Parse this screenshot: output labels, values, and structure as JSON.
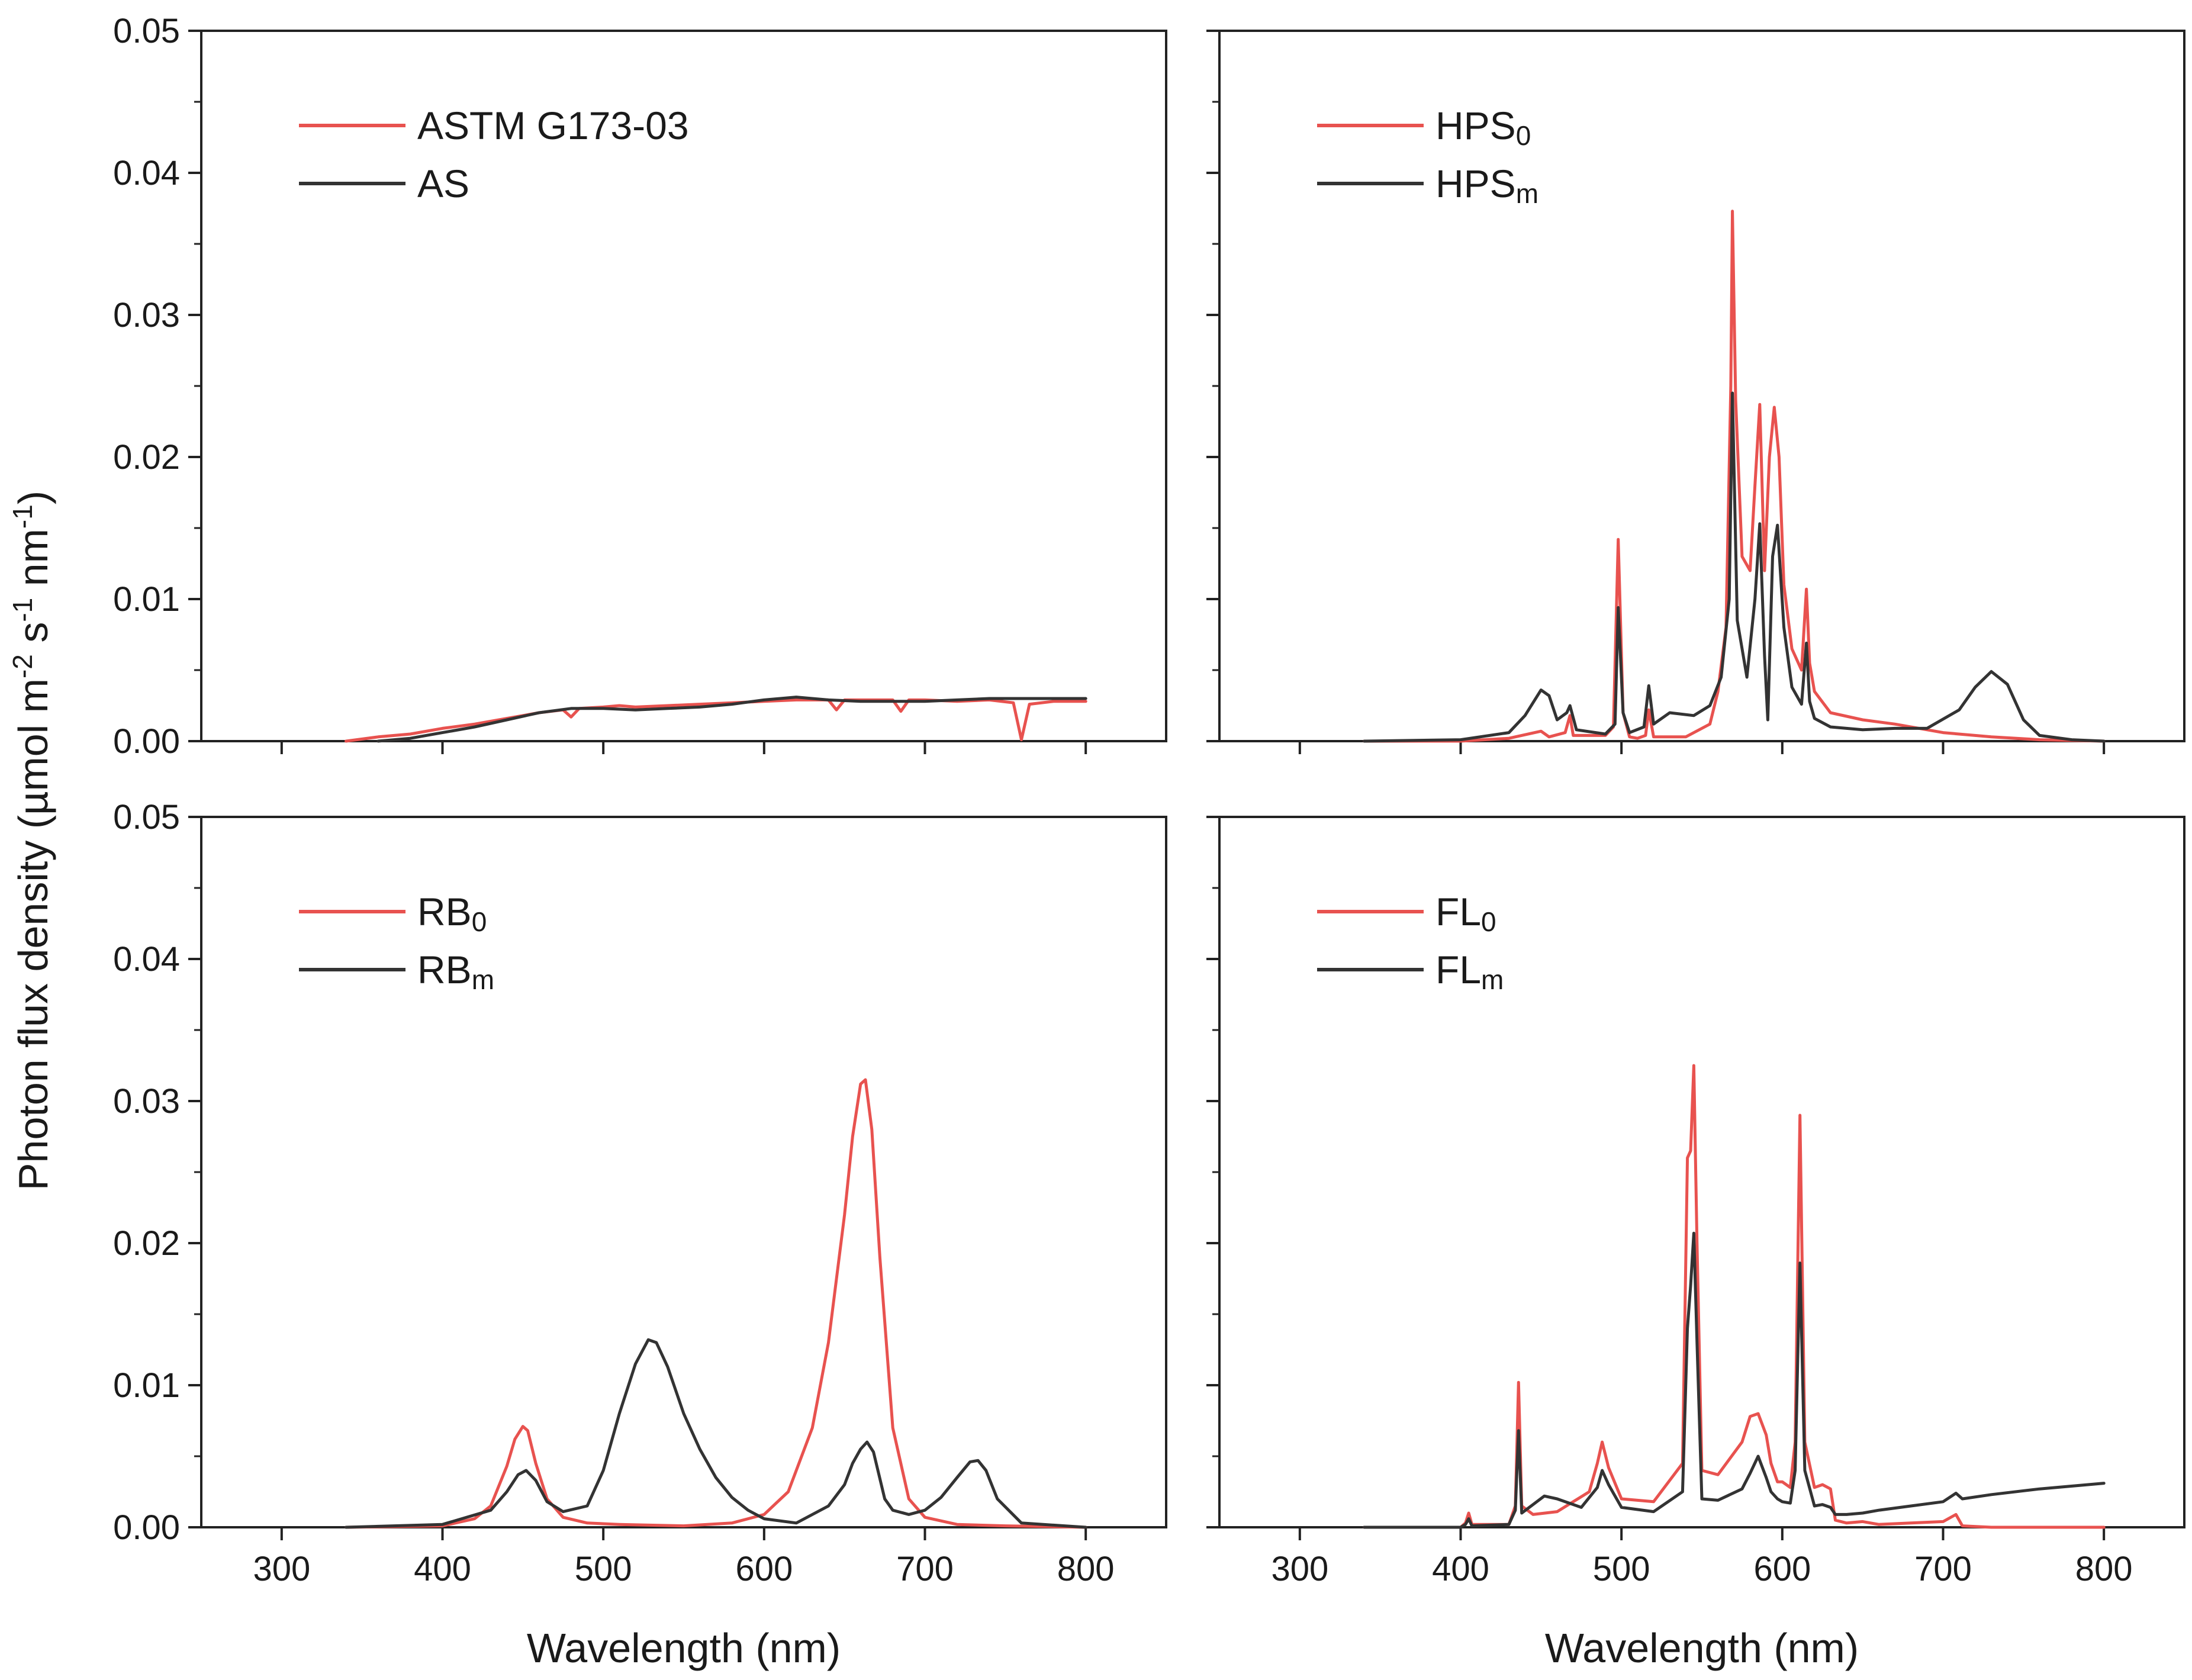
{
  "figure": {
    "ylabel_parts": [
      "Photon flux density (µmol m",
      "-2",
      " s",
      "-1",
      " nm",
      "-1",
      ")"
    ],
    "xlabel": "Wavelength (nm)",
    "colors": {
      "red": "#e8524f",
      "black": "#333333",
      "axis": "#222222"
    }
  },
  "chart_data": [
    {
      "type": "line",
      "panel": "top-left",
      "title": "",
      "xlabel": "",
      "ylabel": "Photon flux density (µmol m-2 s-1 nm-1)",
      "xlim": [
        250,
        850
      ],
      "ylim": [
        0,
        0.05
      ],
      "xticks": [
        300,
        400,
        500,
        600,
        700,
        800
      ],
      "yticks": [
        "0.00",
        "0.01",
        "0.02",
        "0.03",
        "0.04",
        "0.05"
      ],
      "show_x_labels": false,
      "show_y_labels": true,
      "series": [
        {
          "name": "ASTM G173-03",
          "sub": "",
          "color": "#e8524f",
          "x": [
            340,
            360,
            380,
            400,
            420,
            440,
            460,
            475,
            480,
            485,
            500,
            510,
            520,
            540,
            560,
            580,
            600,
            620,
            640,
            645,
            650,
            660,
            680,
            685,
            690,
            700,
            720,
            740,
            755,
            760,
            765,
            780,
            800
          ],
          "y": [
            0.0,
            0.0003,
            0.0005,
            0.0009,
            0.0012,
            0.0016,
            0.002,
            0.0022,
            0.0017,
            0.0023,
            0.0024,
            0.0025,
            0.0024,
            0.0025,
            0.0026,
            0.0027,
            0.0028,
            0.0029,
            0.0029,
            0.0022,
            0.0029,
            0.0029,
            0.0029,
            0.0021,
            0.0029,
            0.0029,
            0.0028,
            0.0029,
            0.0027,
            0.0001,
            0.0026,
            0.0028,
            0.0028
          ]
        },
        {
          "name": "AS",
          "sub": "",
          "color": "#333333",
          "x": [
            360,
            380,
            400,
            420,
            440,
            460,
            480,
            500,
            520,
            540,
            560,
            580,
            600,
            620,
            640,
            660,
            680,
            700,
            720,
            740,
            760,
            780,
            800
          ],
          "y": [
            0.0,
            0.0002,
            0.0006,
            0.001,
            0.0015,
            0.002,
            0.0023,
            0.0023,
            0.0022,
            0.0023,
            0.0024,
            0.0026,
            0.0029,
            0.0031,
            0.0029,
            0.0028,
            0.0028,
            0.0028,
            0.0029,
            0.003,
            0.003,
            0.003,
            0.003
          ]
        }
      ]
    },
    {
      "type": "line",
      "panel": "top-right",
      "title": "",
      "xlabel": "",
      "ylabel": "",
      "xlim": [
        250,
        850
      ],
      "ylim": [
        0,
        0.05
      ],
      "xticks": [
        300,
        400,
        500,
        600,
        700,
        800
      ],
      "yticks": [
        "0.00",
        "0.01",
        "0.02",
        "0.03",
        "0.04",
        "0.05"
      ],
      "show_x_labels": false,
      "show_y_labels": false,
      "series": [
        {
          "name": "HPS",
          "sub": "0",
          "color": "#e8524f",
          "x": [
            340,
            400,
            430,
            450,
            455,
            465,
            468,
            470,
            490,
            495,
            498,
            501,
            505,
            510,
            515,
            517,
            520,
            540,
            555,
            560,
            565,
            568,
            569,
            571,
            575,
            580,
            583,
            586,
            589,
            592,
            595,
            598,
            601,
            606,
            612,
            615,
            617,
            620,
            630,
            650,
            670,
            700,
            730,
            760,
            800
          ],
          "y": [
            0.0,
            0.0,
            0.0002,
            0.0007,
            0.0003,
            0.0006,
            0.0018,
            0.0004,
            0.0004,
            0.001,
            0.0142,
            0.002,
            0.0003,
            0.0002,
            0.0004,
            0.0022,
            0.0003,
            0.0003,
            0.0012,
            0.0035,
            0.008,
            0.025,
            0.0373,
            0.024,
            0.013,
            0.012,
            0.018,
            0.0237,
            0.012,
            0.02,
            0.0235,
            0.02,
            0.011,
            0.0065,
            0.005,
            0.0107,
            0.0055,
            0.0035,
            0.002,
            0.0015,
            0.0012,
            0.0006,
            0.0003,
            0.0001,
            0.0
          ]
        },
        {
          "name": "HPS",
          "sub": "m",
          "color": "#333333",
          "x": [
            340,
            400,
            430,
            440,
            450,
            455,
            460,
            466,
            468,
            472,
            490,
            496,
            498,
            501,
            505,
            514,
            517,
            520,
            530,
            545,
            555,
            562,
            567,
            569,
            572,
            578,
            583,
            586,
            589,
            591,
            594,
            597,
            601,
            606,
            612,
            615,
            617,
            620,
            630,
            650,
            670,
            690,
            710,
            720,
            730,
            740,
            750,
            760,
            780,
            800
          ],
          "y": [
            0.0,
            0.0001,
            0.0006,
            0.0018,
            0.0036,
            0.0032,
            0.0015,
            0.002,
            0.0025,
            0.0008,
            0.0005,
            0.0012,
            0.0094,
            0.002,
            0.0006,
            0.001,
            0.0039,
            0.0012,
            0.002,
            0.0018,
            0.0025,
            0.0045,
            0.01,
            0.0245,
            0.0085,
            0.0045,
            0.01,
            0.0153,
            0.006,
            0.0015,
            0.013,
            0.0152,
            0.008,
            0.0038,
            0.0026,
            0.0069,
            0.0028,
            0.0016,
            0.001,
            0.0008,
            0.0009,
            0.0009,
            0.0022,
            0.0038,
            0.0049,
            0.004,
            0.0015,
            0.0004,
            0.0001,
            0.0
          ]
        }
      ]
    },
    {
      "type": "line",
      "panel": "bottom-left",
      "title": "",
      "xlabel": "Wavelength (nm)",
      "ylabel": "",
      "xlim": [
        250,
        850
      ],
      "ylim": [
        0,
        0.05
      ],
      "xticks": [
        300,
        400,
        500,
        600,
        700,
        800
      ],
      "yticks": [
        "0.00",
        "0.01",
        "0.02",
        "0.03",
        "0.04",
        "0.05"
      ],
      "show_x_labels": true,
      "show_y_labels": true,
      "series": [
        {
          "name": "RB",
          "sub": "0",
          "color": "#e8524f",
          "x": [
            340,
            400,
            420,
            430,
            440,
            445,
            450,
            453,
            458,
            465,
            475,
            490,
            510,
            550,
            580,
            600,
            615,
            630,
            640,
            650,
            655,
            660,
            663,
            667,
            672,
            680,
            690,
            700,
            720,
            750,
            800
          ],
          "y": [
            0.0,
            0.0001,
            0.0006,
            0.0015,
            0.0043,
            0.0062,
            0.0071,
            0.0068,
            0.0045,
            0.002,
            0.0007,
            0.0003,
            0.0002,
            0.0001,
            0.0003,
            0.0009,
            0.0025,
            0.007,
            0.013,
            0.022,
            0.0275,
            0.0312,
            0.0315,
            0.028,
            0.019,
            0.007,
            0.002,
            0.0007,
            0.0002,
            0.0001,
            0.0
          ]
        },
        {
          "name": "RB",
          "sub": "m",
          "color": "#333333",
          "x": [
            340,
            400,
            430,
            440,
            447,
            452,
            458,
            465,
            475,
            490,
            500,
            510,
            520,
            528,
            533,
            540,
            550,
            560,
            570,
            580,
            590,
            600,
            620,
            640,
            650,
            655,
            660,
            664,
            668,
            675,
            680,
            690,
            700,
            710,
            720,
            728,
            733,
            738,
            745,
            760,
            800
          ],
          "y": [
            0.0,
            0.0002,
            0.0012,
            0.0025,
            0.0037,
            0.004,
            0.0033,
            0.0018,
            0.0011,
            0.0015,
            0.004,
            0.008,
            0.0115,
            0.0132,
            0.013,
            0.0113,
            0.008,
            0.0055,
            0.0035,
            0.0021,
            0.0012,
            0.0006,
            0.0003,
            0.0015,
            0.003,
            0.0045,
            0.0055,
            0.006,
            0.0053,
            0.002,
            0.0012,
            0.0009,
            0.0012,
            0.0021,
            0.0035,
            0.0046,
            0.0047,
            0.004,
            0.002,
            0.0003,
            0.0
          ]
        }
      ]
    },
    {
      "type": "line",
      "panel": "bottom-right",
      "title": "",
      "xlabel": "Wavelength (nm)",
      "ylabel": "",
      "xlim": [
        250,
        850
      ],
      "ylim": [
        0,
        0.05
      ],
      "xticks": [
        300,
        400,
        500,
        600,
        700,
        800
      ],
      "yticks": [
        "0.00",
        "0.01",
        "0.02",
        "0.03",
        "0.04",
        "0.05"
      ],
      "show_x_labels": true,
      "show_y_labels": false,
      "series": [
        {
          "name": "FL",
          "sub": "0",
          "color": "#e8524f",
          "x": [
            340,
            400,
            403,
            405,
            407,
            430,
            434,
            436,
            438,
            445,
            460,
            480,
            485,
            488,
            492,
            500,
            520,
            538,
            541,
            543,
            545,
            547,
            550,
            560,
            575,
            580,
            585,
            590,
            593,
            597,
            600,
            605,
            608,
            611,
            614,
            620,
            625,
            630,
            633,
            640,
            650,
            660,
            680,
            700,
            708,
            712,
            730,
            760,
            800
          ],
          "y": [
            0.0,
            0.0,
            0.0003,
            0.001,
            0.0002,
            0.0002,
            0.0015,
            0.0102,
            0.0015,
            0.0009,
            0.0011,
            0.0025,
            0.0045,
            0.006,
            0.0042,
            0.002,
            0.0018,
            0.0045,
            0.026,
            0.0265,
            0.0325,
            0.02,
            0.004,
            0.0037,
            0.006,
            0.0078,
            0.008,
            0.0065,
            0.0045,
            0.0032,
            0.0032,
            0.0028,
            0.006,
            0.029,
            0.006,
            0.0028,
            0.003,
            0.0027,
            0.0005,
            0.0003,
            0.0004,
            0.0002,
            0.0003,
            0.0004,
            0.0009,
            0.0001,
            0.0,
            0.0,
            0.0
          ]
        },
        {
          "name": "FL",
          "sub": "m",
          "color": "#333333",
          "x": [
            340,
            400,
            403,
            405,
            407,
            430,
            434,
            436,
            438,
            445,
            452,
            460,
            475,
            485,
            488,
            492,
            500,
            520,
            538,
            541,
            543,
            545,
            547,
            550,
            560,
            575,
            580,
            585,
            590,
            593,
            597,
            600,
            605,
            608,
            611,
            614,
            620,
            625,
            630,
            633,
            640,
            650,
            660,
            680,
            700,
            708,
            712,
            730,
            760,
            800
          ],
          "y": [
            0.0,
            0.0,
            0.0002,
            0.0006,
            0.0001,
            0.0002,
            0.0012,
            0.0068,
            0.001,
            0.0016,
            0.0022,
            0.002,
            0.0014,
            0.0028,
            0.004,
            0.003,
            0.0014,
            0.0011,
            0.0025,
            0.014,
            0.017,
            0.0207,
            0.013,
            0.002,
            0.0019,
            0.0027,
            0.0038,
            0.005,
            0.0035,
            0.0025,
            0.002,
            0.0018,
            0.0017,
            0.004,
            0.0186,
            0.004,
            0.0015,
            0.0016,
            0.0014,
            0.0009,
            0.0009,
            0.001,
            0.0012,
            0.0015,
            0.0018,
            0.0024,
            0.002,
            0.0023,
            0.0027,
            0.0031
          ]
        }
      ]
    }
  ]
}
